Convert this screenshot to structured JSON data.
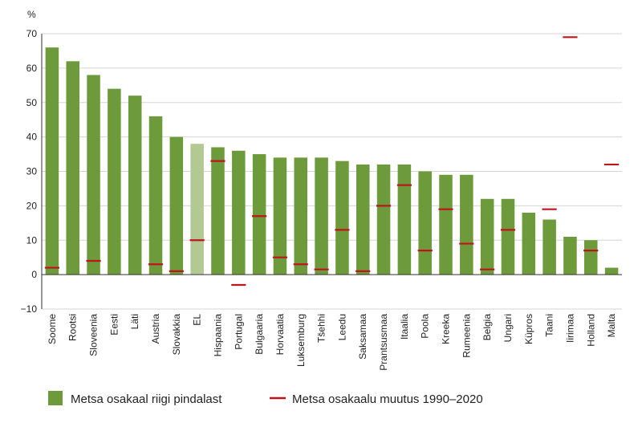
{
  "chart_data": {
    "type": "bar",
    "unit_label": "%",
    "categories": [
      "Soome",
      "Rootsi",
      "Sloveenia",
      "Eesti",
      "Läti",
      "Austria",
      "Slovakkia",
      "EL",
      "Hispaania",
      "Portugal",
      "Bulgaaria",
      "Horvaatia",
      "Luksemburg",
      "Tšehhi",
      "Leedu",
      "Saksamaa",
      "Prantsusmaa",
      "Itaalia",
      "Poola",
      "Kreeka",
      "Rumeenia",
      "Belgia",
      "Ungari",
      "Küpros",
      "Taani",
      "Iirimaa",
      "Holland",
      "Malta"
    ],
    "highlight_category": "EL",
    "series": [
      {
        "name": "Metsa osakaal riigi pindalast",
        "kind": "bar",
        "values": [
          66,
          62,
          58,
          54,
          52,
          46,
          40,
          38,
          37,
          36,
          35,
          34,
          34,
          34,
          33,
          32,
          32,
          32,
          30,
          29,
          29,
          22,
          22,
          18,
          16,
          11,
          10,
          2
        ]
      },
      {
        "name": "Metsa osakaalu muutus 1990–2020",
        "kind": "marker",
        "values": [
          2,
          null,
          4,
          null,
          null,
          3,
          1,
          10,
          33,
          -3,
          17,
          5,
          3,
          1.5,
          13,
          1,
          20,
          26,
          7,
          19,
          9,
          1.5,
          13,
          null,
          19,
          69,
          7,
          32
        ]
      }
    ],
    "ylim": [
      -10,
      70
    ],
    "yticks": [
      -10,
      0,
      10,
      20,
      30,
      40,
      50,
      60,
      70
    ],
    "grid": true,
    "legend_position": "bottom",
    "colors": {
      "bar": "#6d9a3b",
      "bar_highlight": "#b3c993",
      "marker": "#c0141c",
      "grid": "#d5d5d5",
      "axis": "#333333"
    }
  }
}
